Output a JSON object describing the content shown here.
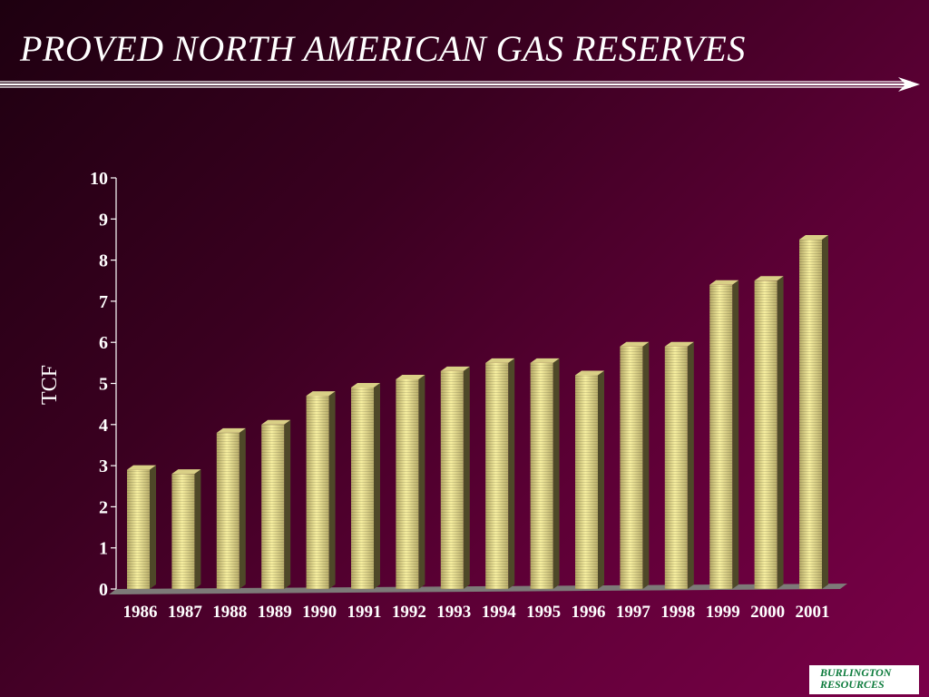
{
  "title": "PROVED NORTH AMERICAN GAS RESERVES",
  "logo": {
    "line1": "BURLINGTON",
    "line2": "RESOURCES"
  },
  "colors": {
    "bar_light": "#f7efa0",
    "bar_mid": "#b8ad6b",
    "bar_dark": "#4e4828",
    "axis_text": "#ffffff",
    "logo_text": "#0a7a3a"
  },
  "chart_data": {
    "type": "bar",
    "categories": [
      "1986",
      "1987",
      "1988",
      "1989",
      "1990",
      "1991",
      "1992",
      "1993",
      "1994",
      "1995",
      "1996",
      "1997",
      "1998",
      "1999",
      "2000",
      "2001"
    ],
    "values": [
      2.9,
      2.8,
      3.8,
      4.0,
      4.7,
      4.9,
      5.1,
      5.3,
      5.5,
      5.5,
      5.2,
      5.9,
      5.9,
      7.4,
      7.5,
      8.5
    ],
    "title": "PROVED NORTH AMERICAN GAS RESERVES",
    "xlabel": "",
    "ylabel": "TCF",
    "ylim": [
      0,
      10
    ],
    "yticks": [
      0,
      1,
      2,
      3,
      4,
      5,
      6,
      7,
      8,
      9,
      10
    ],
    "grid": false,
    "legend": "none"
  }
}
